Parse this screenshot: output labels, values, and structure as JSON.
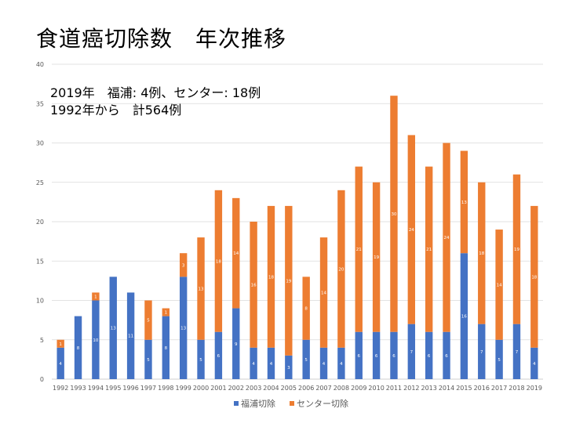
{
  "slide": {
    "title": "食道癌切除数　年次推移",
    "annotation_line1": "2019年　福浦: 4例、センター: 18例",
    "annotation_line2": "1992年から　計564例"
  },
  "chart_data": {
    "type": "bar",
    "stacked": true,
    "categories": [
      "1992",
      "1993",
      "1994",
      "1995",
      "1996",
      "1997",
      "1998",
      "1999",
      "2000",
      "2001",
      "2002",
      "2003",
      "2004",
      "2005",
      "2006",
      "2007",
      "2008",
      "2009",
      "2010",
      "2011",
      "2012",
      "2013",
      "2014",
      "2015",
      "2016",
      "2017",
      "2018",
      "2019"
    ],
    "series": [
      {
        "name": "福浦切除",
        "color": "#4472C4",
        "values": [
          4,
          8,
          10,
          13,
          11,
          5,
          8,
          13,
          5,
          6,
          9,
          4,
          4,
          3,
          5,
          4,
          4,
          6,
          6,
          6,
          7,
          6,
          6,
          16,
          7,
          5,
          7,
          4
        ]
      },
      {
        "name": "センター切除",
        "color": "#ED7D31",
        "values": [
          1,
          0,
          1,
          0,
          0,
          5,
          1,
          3,
          13,
          18,
          14,
          16,
          18,
          19,
          8,
          14,
          20,
          21,
          19,
          30,
          24,
          21,
          24,
          13,
          18,
          14,
          19,
          18
        ]
      }
    ],
    "ylim": [
      0,
      40
    ],
    "yticks": [
      0,
      5,
      10,
      15,
      20,
      25,
      30,
      35,
      40
    ],
    "grid": true,
    "legend": "bottom"
  }
}
